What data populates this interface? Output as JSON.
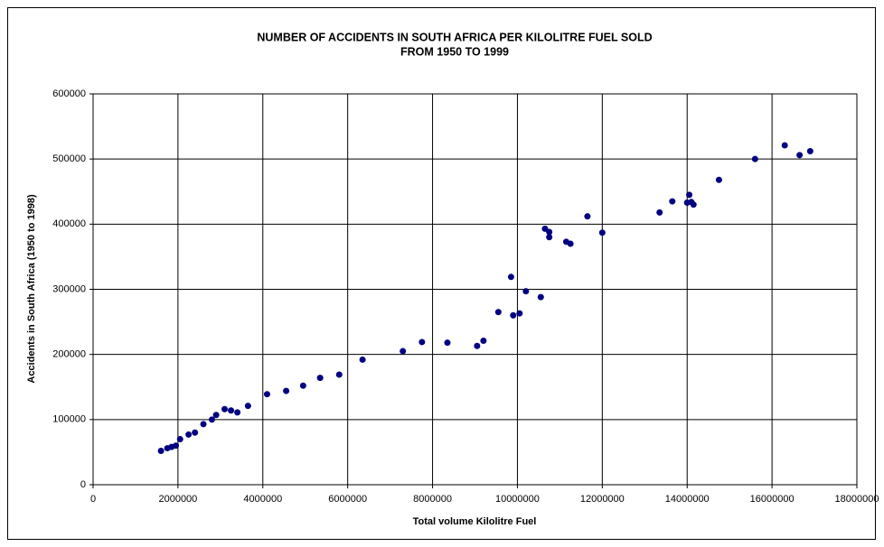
{
  "chart_data": {
    "type": "scatter",
    "title": "NUMBER OF ACCIDENTS  IN SOUTH AFRICA PER KILOLITRE FUEL SOLD",
    "subtitle": "FROM 1950 TO 1999",
    "x_label": "Total volume Kilolitre Fuel",
    "y_label": "Accidents in South Africa (1950 to 1998)",
    "color": "#000080",
    "grid": true,
    "xlim": [
      0,
      18000000
    ],
    "xticks": [
      0,
      2000000,
      4000000,
      6000000,
      8000000,
      10000000,
      12000000,
      14000000,
      16000000,
      18000000
    ],
    "ylim": [
      0,
      600000
    ],
    "yticks": [
      0,
      100000,
      200000,
      300000,
      400000,
      500000,
      600000
    ],
    "x": [
      1600000,
      1750000,
      1850000,
      1950000,
      2050000,
      2250000,
      2400000,
      2600000,
      2800000,
      2900000,
      3100000,
      3250000,
      3400000,
      3650000,
      4100000,
      4550000,
      4950000,
      5350000,
      5800000,
      6350000,
      7300000,
      7750000,
      8350000,
      9050000,
      9200000,
      9550000,
      9850000,
      9900000,
      10050000,
      10200000,
      10550000,
      10650000,
      10750000,
      10750000,
      11150000,
      11250000,
      11650000,
      12000000,
      13350000,
      13650000,
      14000000,
      14050000,
      14100000,
      14150000,
      14750000,
      15600000,
      16300000,
      16650000,
      16900000
    ],
    "values": [
      52000,
      56000,
      58000,
      60000,
      70000,
      77000,
      80000,
      93000,
      100000,
      107000,
      116000,
      114000,
      111000,
      121000,
      139000,
      144000,
      152000,
      164000,
      169000,
      192000,
      205000,
      219000,
      218000,
      213000,
      221000,
      265000,
      319000,
      260000,
      263000,
      297000,
      288000,
      393000,
      388000,
      380000,
      373000,
      370000,
      412000,
      387000,
      418000,
      435000,
      433000,
      445000,
      434000,
      430000,
      468000,
      500000,
      521000,
      506000,
      512000
    ]
  }
}
